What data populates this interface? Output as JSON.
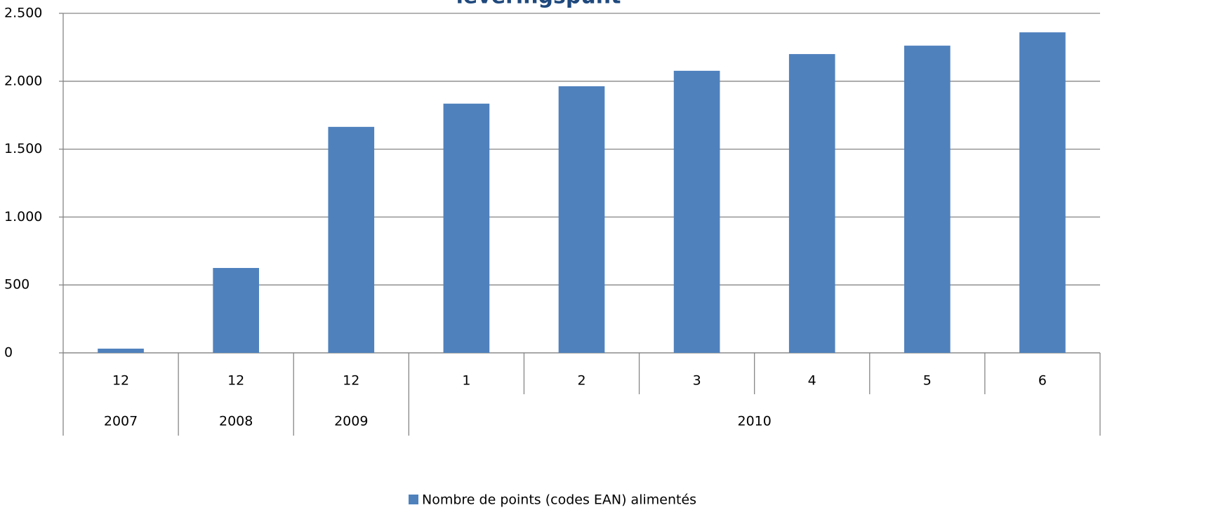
{
  "chart_data": {
    "type": "bar",
    "title": "leveringspunt",
    "groups": [
      {
        "label": "2007",
        "categories": [
          "12"
        ]
      },
      {
        "label": "2008",
        "categories": [
          "12"
        ]
      },
      {
        "label": "2009",
        "categories": [
          "12"
        ]
      },
      {
        "label": "2010",
        "categories": [
          "1",
          "2",
          "3",
          "4",
          "5",
          "6"
        ]
      }
    ],
    "series": [
      {
        "name": "Nombre de points (codes EAN) alimentés",
        "color": "#4f81bd",
        "values": [
          31,
          625,
          1664,
          1835,
          1963,
          2077,
          2200,
          2262,
          2360
        ]
      }
    ],
    "ylim": [
      0,
      2500
    ],
    "yticks": [
      0,
      500,
      {
        "value": 1000,
        "label": "1.000"
      },
      {
        "value": 1500,
        "label": "1.500"
      },
      {
        "value": 2000,
        "label": "2.000"
      },
      {
        "value": 2500,
        "label": "2.500"
      }
    ],
    "grid": true,
    "legend": "bottom"
  }
}
